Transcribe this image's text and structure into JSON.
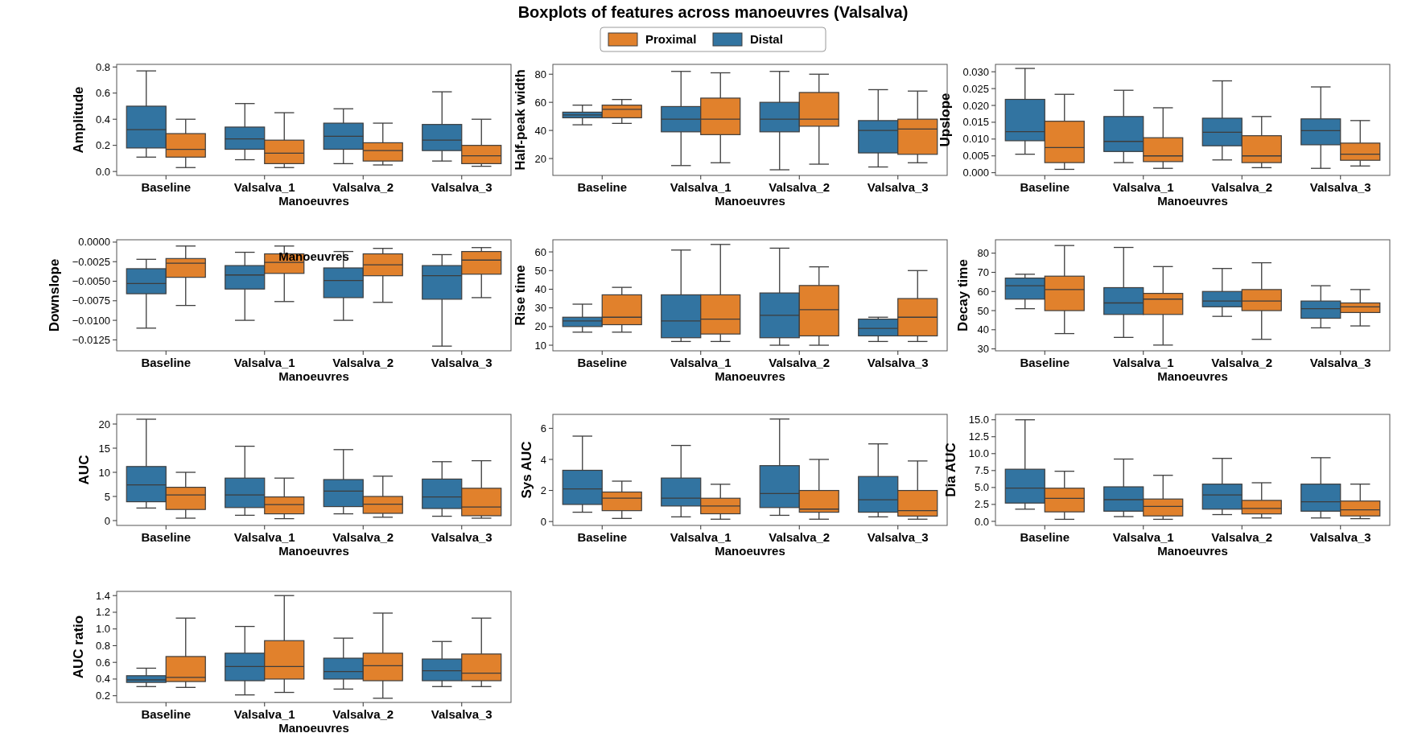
{
  "chart_data": [
    {
      "type": "box",
      "xlabel": "Manoeuvres",
      "ylabel": "Amplitude",
      "categories": [
        "Baseline",
        "Valsalva_1",
        "Valsalva_2",
        "Valsalva_3"
      ],
      "ylim": [
        -0.03,
        0.82
      ],
      "yticks": [
        {
          "value": 0,
          "label": "0.0"
        },
        0.2,
        0.4,
        0.6,
        0.8
      ],
      "series": [
        {
          "color": "#3274a1",
          "boxes": [
            {
              "low": 0.11,
              "q1": 0.18,
              "median": 0.32,
              "q3": 0.5,
              "high": 0.77
            },
            {
              "low": 0.09,
              "q1": 0.17,
              "median": 0.25,
              "q3": 0.34,
              "high": 0.52
            },
            {
              "low": 0.06,
              "q1": 0.17,
              "median": 0.27,
              "q3": 0.37,
              "high": 0.48
            },
            {
              "low": 0.08,
              "q1": 0.16,
              "median": 0.24,
              "q3": 0.36,
              "high": 0.61
            }
          ]
        },
        {
          "color": "#e1812c",
          "boxes": [
            {
              "low": 0.03,
              "q1": 0.11,
              "median": 0.17,
              "q3": 0.29,
              "high": 0.4
            },
            {
              "low": 0.03,
              "q1": 0.06,
              "median": 0.14,
              "q3": 0.24,
              "high": 0.45
            },
            {
              "low": 0.05,
              "q1": 0.08,
              "median": 0.16,
              "q3": 0.22,
              "high": 0.37
            },
            {
              "low": 0.04,
              "q1": 0.06,
              "median": 0.12,
              "q3": 0.2,
              "high": 0.4
            }
          ]
        }
      ]
    },
    {
      "type": "box",
      "title": "Boxplots of features across manoeuvres (Valsalva)",
      "legend": "top",
      "xlabel": "Manoeuvres",
      "ylabel": "Half-peak width",
      "categories": [
        "Baseline",
        "Valsalva_1",
        "Valsalva_2",
        "Valsalva_3"
      ],
      "ylim": [
        8,
        87
      ],
      "yticks": [
        20,
        40,
        60,
        80
      ],
      "series": [
        {
          "name": "Distal",
          "color": "#3274a1",
          "boxes": [
            {
              "low": 44,
              "q1": 49,
              "median": 51,
              "q3": 53,
              "high": 58
            },
            {
              "low": 15,
              "q1": 39,
              "median": 48,
              "q3": 57,
              "high": 82
            },
            {
              "low": 12,
              "q1": 39,
              "median": 48,
              "q3": 60,
              "high": 82
            },
            {
              "low": 14,
              "q1": 24,
              "median": 40,
              "q3": 47,
              "high": 69
            }
          ]
        },
        {
          "name": "Proximal",
          "color": "#e1812c",
          "boxes": [
            {
              "low": 45,
              "q1": 49,
              "median": 55,
              "q3": 58,
              "high": 62
            },
            {
              "low": 17,
              "q1": 37,
              "median": 48,
              "q3": 63,
              "high": 81
            },
            {
              "low": 16,
              "q1": 43,
              "median": 48,
              "q3": 67,
              "high": 80
            },
            {
              "low": 17,
              "q1": 23,
              "median": 41,
              "q3": 48,
              "high": 68
            }
          ]
        }
      ]
    },
    {
      "type": "box",
      "xlabel": "Manoeuvres",
      "ylabel": "Upslope",
      "categories": [
        "Baseline",
        "Valsalva_1",
        "Valsalva_2",
        "Valsalva_3"
      ],
      "ylim": [
        -0.0008,
        0.0322
      ],
      "yticks": [
        {
          "value": 0,
          "label": "0.000"
        },
        {
          "value": 0.005,
          "label": "0.005"
        },
        {
          "value": 0.01,
          "label": "0.010"
        },
        {
          "value": 0.015,
          "label": "0.015"
        },
        {
          "value": 0.02,
          "label": "0.020"
        },
        {
          "value": 0.025,
          "label": "0.025"
        },
        {
          "value": 0.03,
          "label": "0.030"
        }
      ],
      "series": [
        {
          "color": "#3274a1",
          "boxes": [
            {
              "low": 0.0055,
              "q1": 0.0095,
              "median": 0.0122,
              "q3": 0.0218,
              "high": 0.031
            },
            {
              "low": 0.003,
              "q1": 0.0063,
              "median": 0.0093,
              "q3": 0.0167,
              "high": 0.0245
            },
            {
              "low": 0.0038,
              "q1": 0.008,
              "median": 0.012,
              "q3": 0.0162,
              "high": 0.0273
            },
            {
              "low": 0.0013,
              "q1": 0.0083,
              "median": 0.0125,
              "q3": 0.016,
              "high": 0.0255
            }
          ]
        },
        {
          "color": "#e1812c",
          "boxes": [
            {
              "low": 0.001,
              "q1": 0.003,
              "median": 0.0075,
              "q3": 0.0153,
              "high": 0.0233
            },
            {
              "low": 0.0013,
              "q1": 0.0033,
              "median": 0.005,
              "q3": 0.0104,
              "high": 0.0193
            },
            {
              "low": 0.0015,
              "q1": 0.003,
              "median": 0.005,
              "q3": 0.011,
              "high": 0.0167
            },
            {
              "low": 0.002,
              "q1": 0.0037,
              "median": 0.0055,
              "q3": 0.0088,
              "high": 0.0155
            }
          ]
        }
      ]
    },
    {
      "type": "box",
      "xlabel": "Manoeuvres",
      "ylabel": "Downslope",
      "annotations": [
        "Manoeuvres"
      ],
      "categories": [
        "Baseline",
        "Valsalva_1",
        "Valsalva_2",
        "Valsalva_3"
      ],
      "ylim": [
        -0.0139,
        0.0003
      ],
      "yticks": [
        {
          "value": -0.0125,
          "label": "−0.0125"
        },
        {
          "value": -0.01,
          "label": "−0.0100"
        },
        {
          "value": -0.0075,
          "label": "−0.0075"
        },
        {
          "value": -0.005,
          "label": "−0.0050"
        },
        {
          "value": -0.0025,
          "label": "−0.0025"
        },
        {
          "value": 0,
          "label": "0.0000"
        }
      ],
      "series": [
        {
          "color": "#3274a1",
          "boxes": [
            {
              "low": -0.011,
              "q1": -0.0066,
              "median": -0.0053,
              "q3": -0.0034,
              "high": -0.0022
            },
            {
              "low": -0.01,
              "q1": -0.006,
              "median": -0.0042,
              "q3": -0.003,
              "high": -0.0013
            },
            {
              "low": -0.01,
              "q1": -0.0071,
              "median": -0.0049,
              "q3": -0.0033,
              "high": -0.0012
            },
            {
              "low": -0.0133,
              "q1": -0.0073,
              "median": -0.0043,
              "q3": -0.003,
              "high": -0.0016
            }
          ]
        },
        {
          "color": "#e1812c",
          "boxes": [
            {
              "low": -0.0081,
              "q1": -0.0045,
              "median": -0.0027,
              "q3": -0.0021,
              "high": -0.0005
            },
            {
              "low": -0.0076,
              "q1": -0.004,
              "median": -0.0026,
              "q3": -0.0015,
              "high": -0.0005
            },
            {
              "low": -0.0077,
              "q1": -0.0043,
              "median": -0.0029,
              "q3": -0.0015,
              "high": -0.0008
            },
            {
              "low": -0.0071,
              "q1": -0.0041,
              "median": -0.0023,
              "q3": -0.0012,
              "high": -0.0007
            }
          ]
        }
      ]
    },
    {
      "type": "box",
      "xlabel": "Manoeuvres",
      "ylabel": "Rise time",
      "categories": [
        "Baseline",
        "Valsalva_1",
        "Valsalva_2",
        "Valsalva_3"
      ],
      "ylim": [
        7,
        66.5
      ],
      "yticks": [
        10,
        20,
        30,
        40,
        50,
        60
      ],
      "series": [
        {
          "color": "#3274a1",
          "boxes": [
            {
              "low": 17,
              "q1": 20,
              "median": 23,
              "q3": 25,
              "high": 32
            },
            {
              "low": 12,
              "q1": 14,
              "median": 23,
              "q3": 37,
              "high": 61
            },
            {
              "low": 10,
              "q1": 14,
              "median": 26,
              "q3": 38,
              "high": 62
            },
            {
              "low": 12,
              "q1": 15,
              "median": 19,
              "q3": 24,
              "high": 25
            }
          ]
        },
        {
          "color": "#e1812c",
          "boxes": [
            {
              "low": 17,
              "q1": 21,
              "median": 25,
              "q3": 37,
              "high": 41
            },
            {
              "low": 12,
              "q1": 16,
              "median": 24,
              "q3": 37,
              "high": 64
            },
            {
              "low": 10,
              "q1": 15,
              "median": 29,
              "q3": 42,
              "high": 52
            },
            {
              "low": 12,
              "q1": 15,
              "median": 25,
              "q3": 35,
              "high": 50
            }
          ]
        }
      ]
    },
    {
      "type": "box",
      "xlabel": "Manoeuvres",
      "ylabel": "Decay time",
      "categories": [
        "Baseline",
        "Valsalva_1",
        "Valsalva_2",
        "Valsalva_3"
      ],
      "ylim": [
        29,
        87
      ],
      "yticks": [
        30,
        40,
        50,
        60,
        70,
        80
      ],
      "series": [
        {
          "color": "#3274a1",
          "boxes": [
            {
              "low": 51,
              "q1": 56,
              "median": 63,
              "q3": 67,
              "high": 69
            },
            {
              "low": 36,
              "q1": 48,
              "median": 54,
              "q3": 62,
              "high": 83
            },
            {
              "low": 47,
              "q1": 52,
              "median": 55,
              "q3": 60,
              "high": 72
            },
            {
              "low": 41,
              "q1": 46,
              "median": 51,
              "q3": 55,
              "high": 63
            }
          ]
        },
        {
          "color": "#e1812c",
          "boxes": [
            {
              "low": 38,
              "q1": 50,
              "median": 61,
              "q3": 68,
              "high": 84
            },
            {
              "low": 32,
              "q1": 48,
              "median": 56,
              "q3": 59,
              "high": 73
            },
            {
              "low": 35,
              "q1": 50,
              "median": 55,
              "q3": 61,
              "high": 75
            },
            {
              "low": 42,
              "q1": 49,
              "median": 52,
              "q3": 54,
              "high": 61
            }
          ]
        }
      ]
    },
    {
      "type": "box",
      "xlabel": "Manoeuvres",
      "ylabel": "AUC",
      "categories": [
        "Baseline",
        "Valsalva_1",
        "Valsalva_2",
        "Valsalva_3"
      ],
      "ylim": [
        -1,
        22
      ],
      "yticks": [
        0,
        5,
        10,
        15,
        20
      ],
      "series": [
        {
          "color": "#3274a1",
          "boxes": [
            {
              "low": 2.6,
              "q1": 3.9,
              "median": 7.4,
              "q3": 11.2,
              "high": 21
            },
            {
              "low": 1.1,
              "q1": 2.7,
              "median": 5.3,
              "q3": 8.8,
              "high": 15.4
            },
            {
              "low": 1.4,
              "q1": 2.9,
              "median": 6.1,
              "q3": 8.5,
              "high": 14.7
            },
            {
              "low": 0.9,
              "q1": 2.5,
              "median": 4.9,
              "q3": 8.6,
              "high": 12.2
            }
          ]
        },
        {
          "color": "#e1812c",
          "boxes": [
            {
              "low": 0.5,
              "q1": 2.3,
              "median": 5.3,
              "q3": 6.9,
              "high": 10
            },
            {
              "low": 0.4,
              "q1": 1.4,
              "median": 3.3,
              "q3": 4.9,
              "high": 8.8
            },
            {
              "low": 0.7,
              "q1": 1.5,
              "median": 3.4,
              "q3": 5,
              "high": 9.2
            },
            {
              "low": 0.5,
              "q1": 1,
              "median": 2.8,
              "q3": 6.7,
              "high": 12.4
            }
          ]
        }
      ]
    },
    {
      "type": "box",
      "xlabel": "Manoeuvres",
      "ylabel": "Sys AUC",
      "categories": [
        "Baseline",
        "Valsalva_1",
        "Valsalva_2",
        "Valsalva_3"
      ],
      "ylim": [
        -0.25,
        6.9
      ],
      "yticks": [
        0,
        2,
        4,
        6
      ],
      "series": [
        {
          "color": "#3274a1",
          "boxes": [
            {
              "low": 0.6,
              "q1": 1.1,
              "median": 2.1,
              "q3": 3.3,
              "high": 5.5
            },
            {
              "low": 0.3,
              "q1": 1,
              "median": 1.5,
              "q3": 2.8,
              "high": 4.9
            },
            {
              "low": 0.4,
              "q1": 0.9,
              "median": 1.8,
              "q3": 3.6,
              "high": 6.6
            },
            {
              "low": 0.3,
              "q1": 0.6,
              "median": 1.4,
              "q3": 2.9,
              "high": 5
            }
          ]
        },
        {
          "color": "#e1812c",
          "boxes": [
            {
              "low": 0.2,
              "q1": 0.7,
              "median": 1.5,
              "q3": 1.9,
              "high": 2.6
            },
            {
              "low": 0.15,
              "q1": 0.5,
              "median": 1,
              "q3": 1.5,
              "high": 2.4
            },
            {
              "low": 0.15,
              "q1": 0.6,
              "median": 0.8,
              "q3": 2,
              "high": 4
            },
            {
              "low": 0.15,
              "q1": 0.35,
              "median": 0.7,
              "q3": 2,
              "high": 3.9
            }
          ]
        }
      ]
    },
    {
      "type": "box",
      "xlabel": "Manoeuvres",
      "ylabel": "Dia AUC",
      "categories": [
        "Baseline",
        "Valsalva_1",
        "Valsalva_2",
        "Valsalva_3"
      ],
      "ylim": [
        -0.6,
        15.8
      ],
      "yticks": [
        {
          "value": 0,
          "label": "0.0"
        },
        2.5,
        {
          "value": 5,
          "label": "5.0"
        },
        7.5,
        {
          "value": 10,
          "label": "10.0"
        },
        12.5,
        {
          "value": 15,
          "label": "15.0"
        }
      ],
      "series": [
        {
          "color": "#3274a1",
          "boxes": [
            {
              "low": 1.8,
              "q1": 2.7,
              "median": 4.9,
              "q3": 7.7,
              "high": 15
            },
            {
              "low": 0.7,
              "q1": 1.5,
              "median": 3.2,
              "q3": 5.1,
              "high": 9.2
            },
            {
              "low": 1,
              "q1": 1.8,
              "median": 3.9,
              "q3": 5.5,
              "high": 9.3
            },
            {
              "low": 0.5,
              "q1": 1.5,
              "median": 2.9,
              "q3": 5.5,
              "high": 9.4
            }
          ]
        },
        {
          "color": "#e1812c",
          "boxes": [
            {
              "low": 0.3,
              "q1": 1.4,
              "median": 3.4,
              "q3": 4.9,
              "high": 7.4
            },
            {
              "low": 0.3,
              "q1": 0.8,
              "median": 2.2,
              "q3": 3.3,
              "high": 6.8
            },
            {
              "low": 0.5,
              "q1": 1.1,
              "median": 1.9,
              "q3": 3.1,
              "high": 5.7
            },
            {
              "low": 0.4,
              "q1": 0.8,
              "median": 1.7,
              "q3": 3,
              "high": 5.5
            }
          ]
        }
      ]
    },
    {
      "type": "box",
      "xlabel": "Manoeuvres",
      "ylabel": "AUC ratio",
      "categories": [
        "Baseline",
        "Valsalva_1",
        "Valsalva_2",
        "Valsalva_3"
      ],
      "ylim": [
        0.12,
        1.45
      ],
      "yticks": [
        0.2,
        0.4,
        0.6,
        0.8,
        {
          "value": 1,
          "label": "1.0"
        },
        1.2,
        1.4
      ],
      "series": [
        {
          "color": "#3274a1",
          "boxes": [
            {
              "low": 0.31,
              "q1": 0.36,
              "median": 0.39,
              "q3": 0.44,
              "high": 0.53
            },
            {
              "low": 0.21,
              "q1": 0.38,
              "median": 0.55,
              "q3": 0.71,
              "high": 1.03
            },
            {
              "low": 0.28,
              "q1": 0.4,
              "median": 0.49,
              "q3": 0.65,
              "high": 0.89
            },
            {
              "low": 0.31,
              "q1": 0.38,
              "median": 0.5,
              "q3": 0.64,
              "high": 0.85
            }
          ]
        },
        {
          "color": "#e1812c",
          "boxes": [
            {
              "low": 0.3,
              "q1": 0.37,
              "median": 0.42,
              "q3": 0.67,
              "high": 1.13
            },
            {
              "low": 0.24,
              "q1": 0.4,
              "median": 0.55,
              "q3": 0.86,
              "high": 1.4
            },
            {
              "low": 0.17,
              "q1": 0.38,
              "median": 0.56,
              "q3": 0.71,
              "high": 1.19
            },
            {
              "low": 0.31,
              "q1": 0.38,
              "median": 0.47,
              "q3": 0.7,
              "high": 1.13
            }
          ]
        }
      ]
    }
  ]
}
